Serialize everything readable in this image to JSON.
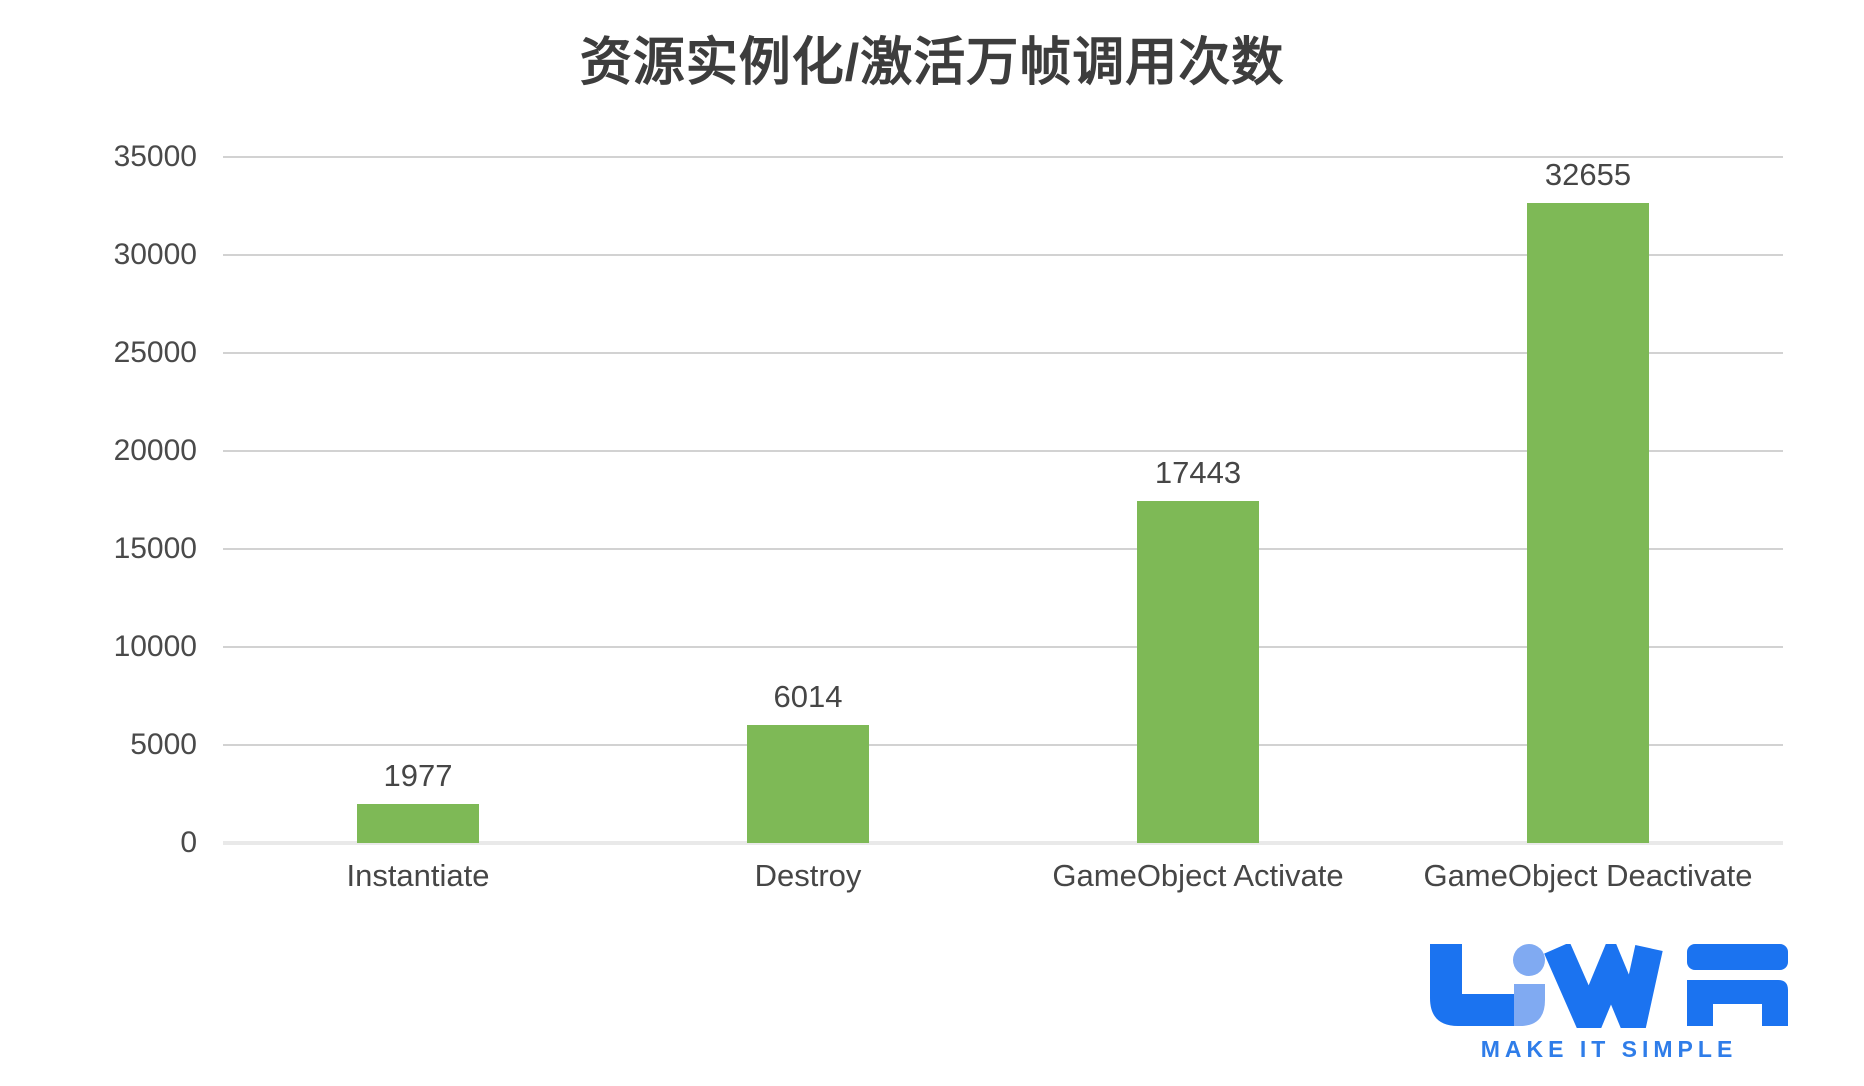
{
  "title": "资源实例化/激活万帧调用次数",
  "colors": {
    "bar": "#7eb956",
    "gridline": "#d2d2d2",
    "baseline": "#e9e9e9",
    "axis_text": "#4a4a4a",
    "label_text": "#464646",
    "title_text": "#3d3d3d",
    "logo_blue": "#1b73f0",
    "logo_light_blue": "#80aaf2",
    "logo_text_blue": "#2f7de9"
  },
  "chart_data": {
    "type": "bar",
    "title": "资源实例化/激活万帧调用次数",
    "categories": [
      "Instantiate",
      "Destroy",
      "GameObject Activate",
      "GameObject Deactivate"
    ],
    "values": [
      1977,
      6014,
      17443,
      32655
    ],
    "data_labels": [
      "1977",
      "6014",
      "17443",
      "32655"
    ],
    "xlabel": "",
    "ylabel": "",
    "ylim": [
      0,
      35000
    ],
    "ytick_interval": 5000,
    "yticks": [
      0,
      5000,
      10000,
      15000,
      20000,
      25000,
      30000,
      35000
    ],
    "grid": true,
    "legend": "none",
    "bar_color": "#7eb956"
  },
  "logo": {
    "brand": "UWA",
    "tagline": "MAKE IT SIMPLE"
  }
}
